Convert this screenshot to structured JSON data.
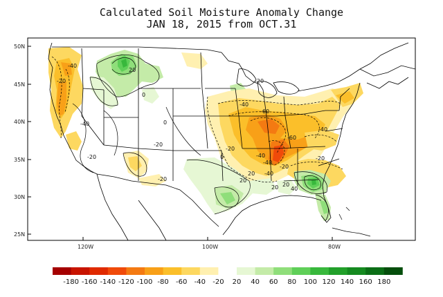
{
  "title": {
    "line1": "Calculated Soil Moisture Anomaly Change",
    "line2": "JAN 18, 2015 from OCT.31"
  },
  "axes": {
    "lat_labels": [
      "50N",
      "45N",
      "40N",
      "35N",
      "30N",
      "25N"
    ],
    "lon_labels": [
      "120W",
      "100W",
      "80W"
    ]
  },
  "contour_labels": [
    "-40",
    "-20",
    "20",
    "0",
    "-40",
    "-60",
    "-40",
    "-60",
    "-40",
    "-20",
    "-20",
    "-40",
    "20",
    "-20",
    "-40",
    "-20",
    "-20",
    "-20",
    "20",
    "40",
    "20",
    "0",
    "-40",
    "-20",
    "0",
    "20"
  ],
  "legend": {
    "negative_labels": [
      "-180",
      "-160",
      "-140",
      "-120",
      "-100",
      "-80",
      "-60",
      "-40",
      "-20"
    ],
    "positive_labels": [
      "20",
      "40",
      "60",
      "80",
      "100",
      "120",
      "140",
      "160",
      "180"
    ],
    "colors": [
      "#a50000",
      "#c81400",
      "#e02a00",
      "#f04a0a",
      "#f47a12",
      "#f8a018",
      "#fbbf2a",
      "#fdd860",
      "#fff0b0",
      "#ffffff",
      "#e6f7d4",
      "#c4eba8",
      "#8fde7a",
      "#5fcf58",
      "#38b83c",
      "#22a02a",
      "#158a20",
      "#0b6e16",
      "#054e0c"
    ]
  }
}
